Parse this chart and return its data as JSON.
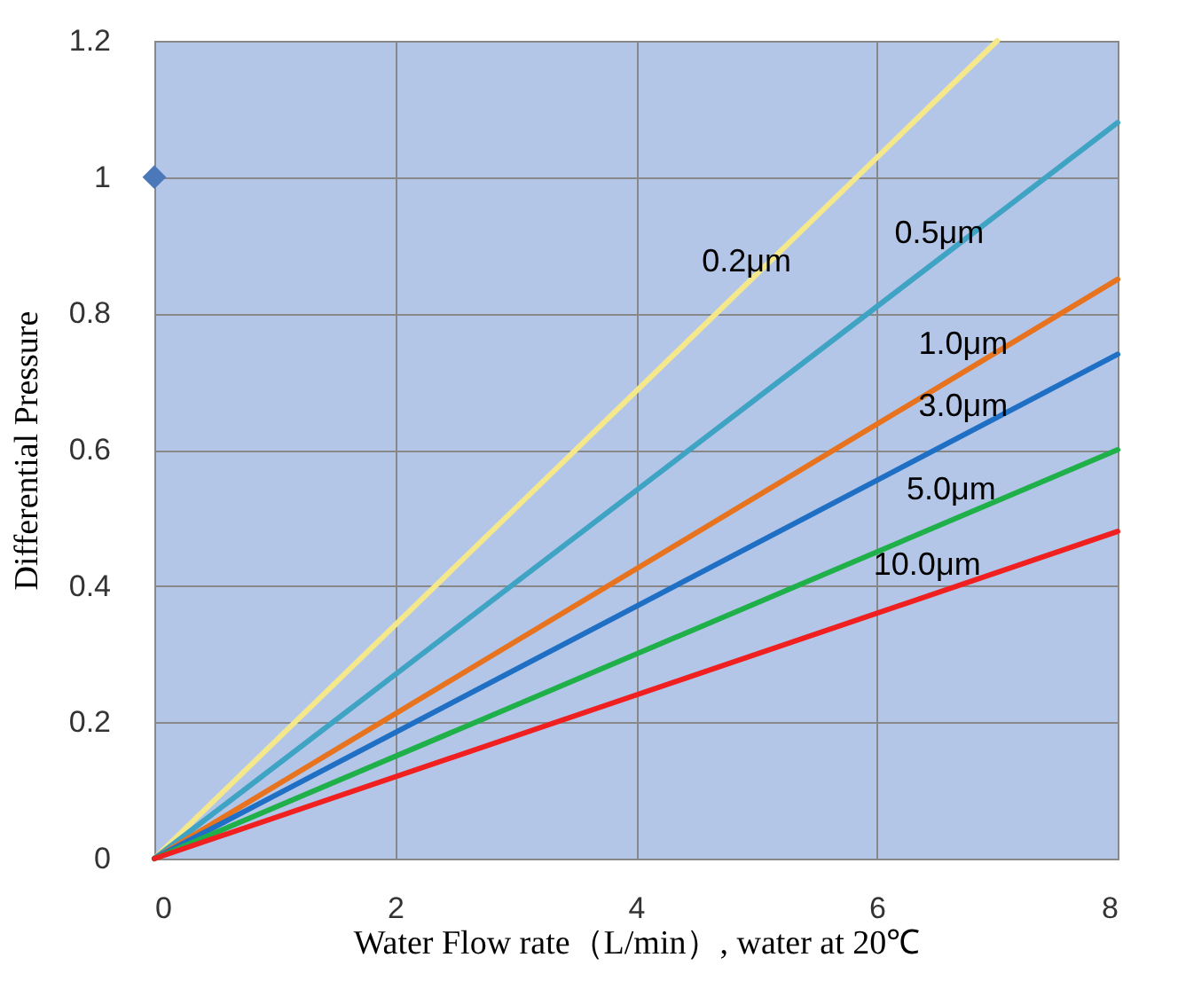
{
  "chart_data": {
    "type": "line",
    "xlabel": "Water Flow rate（L/min）, water at 20℃",
    "ylabel": "Differential Pressure",
    "xlim": [
      0,
      8
    ],
    "xticks": [
      0,
      2,
      4,
      6,
      8
    ],
    "ylim": [
      0,
      1.2
    ],
    "yticks": [
      0,
      0.2,
      0.4,
      0.6,
      0.8,
      1,
      1.2
    ],
    "grid": true,
    "series": [
      {
        "name": "0.2μm",
        "color": "#f5e88a",
        "x": [
          0,
          7
        ],
        "values": [
          0,
          1.2
        ]
      },
      {
        "name": "0.5μm",
        "color": "#3fa3c4",
        "x": [
          0,
          8
        ],
        "values": [
          0,
          1.08
        ]
      },
      {
        "name": "1.0μm",
        "color": "#e8731e",
        "x": [
          0,
          8
        ],
        "values": [
          0,
          0.85
        ]
      },
      {
        "name": "3.0μm",
        "color": "#1f6fc4",
        "x": [
          0,
          8
        ],
        "values": [
          0,
          0.74
        ]
      },
      {
        "name": "5.0μm",
        "color": "#1fb04a",
        "x": [
          0,
          8
        ],
        "values": [
          0,
          0.6
        ]
      },
      {
        "name": "10.0μm",
        "color": "#f02020",
        "x": [
          0,
          8
        ],
        "values": [
          0,
          0.48
        ]
      },
      {
        "type": "scatter",
        "marker": "diamond",
        "color": "#4a78b8",
        "x": [
          0
        ],
        "values": [
          1
        ]
      }
    ]
  }
}
